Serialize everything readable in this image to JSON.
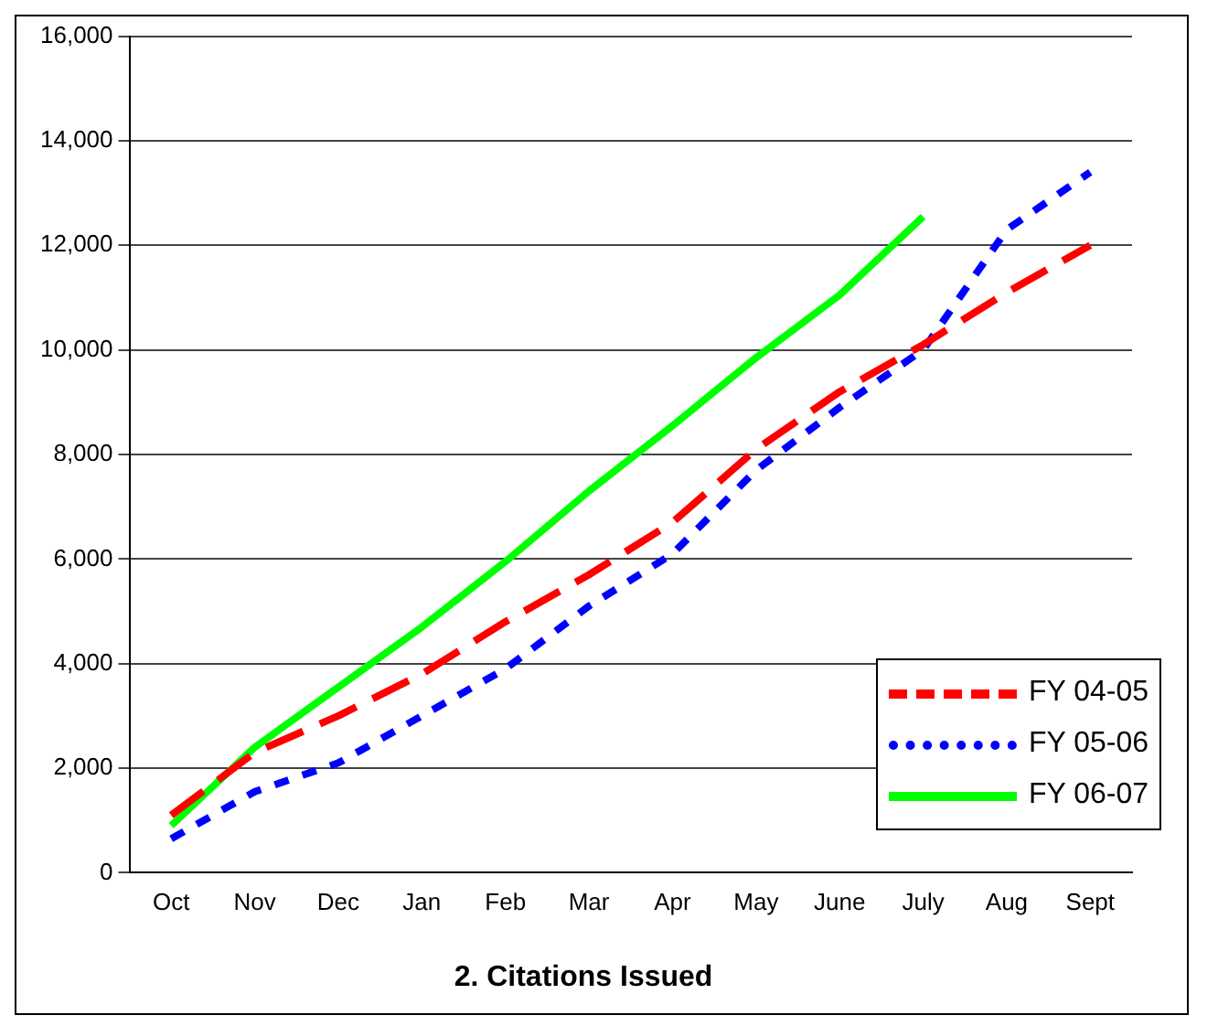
{
  "chart_data": {
    "type": "line",
    "title": "2. Citations Issued",
    "categories": [
      "Oct",
      "Nov",
      "Dec",
      "Jan",
      "Feb",
      "Mar",
      "Apr",
      "May",
      "June",
      "July",
      "Aug",
      "Sept"
    ],
    "series": [
      {
        "name": "FY 04-05",
        "color": "#ff0000",
        "line_style": "dashed",
        "values": [
          1100,
          2300,
          3000,
          3800,
          4800,
          5700,
          6700,
          8100,
          9200,
          10100,
          11100,
          12000
        ]
      },
      {
        "name": "FY 05-06",
        "color": "#0000ff",
        "line_style": "dotted",
        "values": [
          650,
          1550,
          2100,
          3000,
          3900,
          5100,
          6100,
          7700,
          8900,
          10000,
          12300,
          13400
        ]
      },
      {
        "name": "FY 06-07",
        "color": "#00ff00",
        "line_style": "solid",
        "values": [
          900,
          2400,
          3550,
          4700,
          5950,
          7300,
          8550,
          9850,
          11050,
          12550,
          null,
          null
        ]
      }
    ],
    "ylim": [
      0,
      16000
    ],
    "yticks": [
      {
        "value": 0,
        "label": "0"
      },
      {
        "value": 2000,
        "label": "2,000"
      },
      {
        "value": 4000,
        "label": "4,000"
      },
      {
        "value": 6000,
        "label": "6,000"
      },
      {
        "value": 8000,
        "label": "8,000"
      },
      {
        "value": 10000,
        "label": "10,000"
      },
      {
        "value": 12000,
        "label": "12,000"
      },
      {
        "value": 14000,
        "label": "14,000"
      },
      {
        "value": 16000,
        "label": "16,000"
      }
    ],
    "grid": "y",
    "legend": "bottom right",
    "marker": "none"
  }
}
